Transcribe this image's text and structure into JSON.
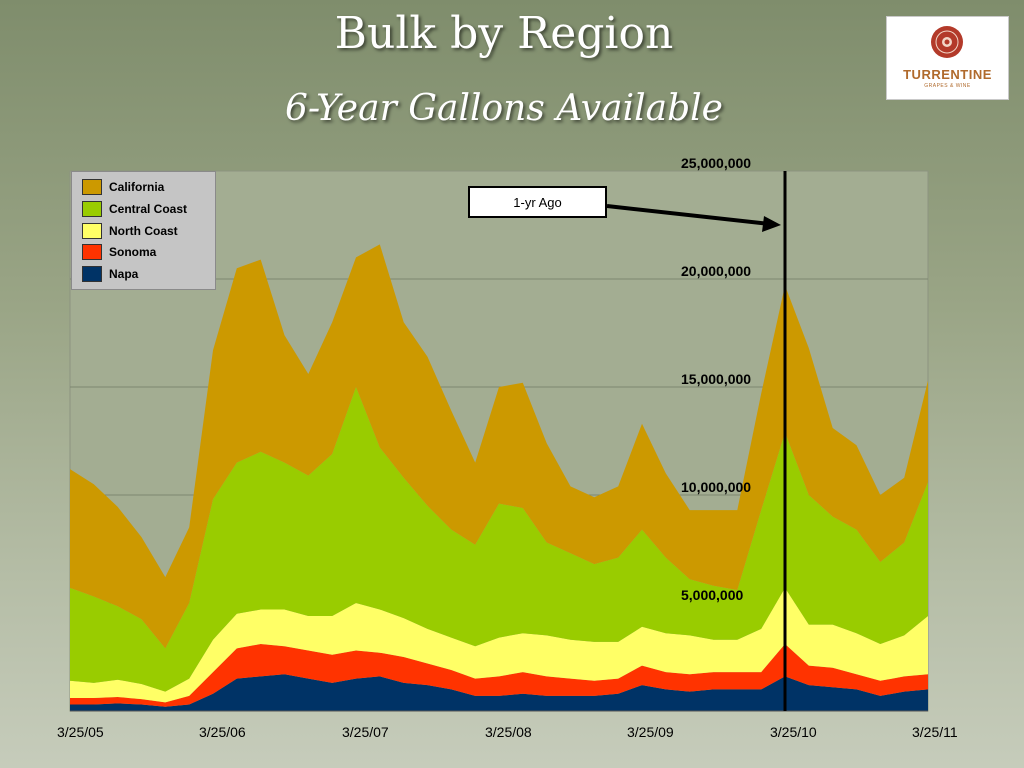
{
  "title": "Bulk by Region",
  "subtitle": "6-Year Gallons Available",
  "logo": {
    "wordmark": "TURRENTINE",
    "tagline": "GRAPES & WINE",
    "seal_text": "TURRENTINE BROKERAGE"
  },
  "annotation": {
    "label": "1-yr Ago",
    "pointer": "arrow to the 3/25/10 marker line, near the top"
  },
  "colors": {
    "California": "#cc9900",
    "Central Coast": "#99cc00",
    "North Coast": "#ffff66",
    "Sonoma": "#ff3300",
    "Napa": "#003366",
    "plot_background": "#a3ad92",
    "marker_line": "#000000"
  },
  "chart_data": {
    "type": "area",
    "stacked": true,
    "title": "Bulk by Region",
    "subtitle": "6-Year Gallons Available",
    "xlabel": "",
    "ylabel": "",
    "x_tick_labels": [
      "3/25/05",
      "3/25/06",
      "3/25/07",
      "3/25/08",
      "3/25/09",
      "3/25/10",
      "3/25/11"
    ],
    "y_tick_labels": [
      "5,000,000",
      "10,000,000",
      "15,000,000",
      "20,000,000",
      "25,000,000"
    ],
    "ylim": [
      0,
      25000000
    ],
    "grid": "horizontal",
    "legend_position": "top-left",
    "marker_line_date": "3/25/10",
    "x": [
      "3/25/05",
      "5/25/05",
      "7/25/05",
      "9/25/05",
      "11/25/05",
      "1/25/06",
      "3/25/06",
      "5/25/06",
      "7/25/06",
      "9/25/06",
      "11/25/06",
      "1/25/07",
      "3/25/07",
      "5/25/07",
      "7/25/07",
      "9/25/07",
      "11/25/07",
      "1/25/08",
      "3/25/08",
      "5/25/08",
      "7/25/08",
      "9/25/08",
      "11/25/08",
      "1/25/09",
      "3/25/09",
      "5/25/09",
      "7/25/09",
      "9/25/09",
      "11/25/09",
      "1/25/10",
      "3/25/10",
      "5/25/10",
      "7/25/10",
      "9/25/10",
      "11/25/10",
      "1/25/11",
      "3/25/11"
    ],
    "series": [
      {
        "name": "Napa",
        "values": [
          300000,
          300000,
          350000,
          300000,
          200000,
          300000,
          800000,
          1500000,
          1600000,
          1700000,
          1500000,
          1300000,
          1500000,
          1600000,
          1300000,
          1200000,
          1000000,
          700000,
          700000,
          800000,
          700000,
          700000,
          700000,
          800000,
          1200000,
          1000000,
          900000,
          1000000,
          1000000,
          1000000,
          1600000,
          1200000,
          1100000,
          1000000,
          700000,
          900000,
          1000000
        ]
      },
      {
        "name": "Sonoma",
        "values": [
          300000,
          300000,
          300000,
          250000,
          200000,
          400000,
          1000000,
          1400000,
          1500000,
          1300000,
          1300000,
          1300000,
          1300000,
          1100000,
          1200000,
          1000000,
          900000,
          800000,
          900000,
          1000000,
          900000,
          800000,
          700000,
          700000,
          900000,
          800000,
          800000,
          800000,
          800000,
          800000,
          1500000,
          900000,
          900000,
          700000,
          700000,
          700000,
          700000
        ]
      },
      {
        "name": "North Coast",
        "values": [
          800000,
          700000,
          800000,
          700000,
          500000,
          800000,
          1500000,
          1600000,
          1600000,
          1700000,
          1600000,
          1800000,
          2200000,
          2000000,
          1800000,
          1600000,
          1500000,
          1500000,
          1800000,
          1800000,
          1900000,
          1800000,
          1800000,
          1700000,
          1800000,
          1800000,
          1800000,
          1500000,
          1500000,
          2000000,
          2600000,
          1900000,
          2000000,
          1900000,
          1700000,
          1900000,
          2700000
        ]
      },
      {
        "name": "Central Coast",
        "values": [
          4300000,
          4000000,
          3400000,
          3000000,
          2000000,
          3500000,
          6500000,
          7000000,
          7300000,
          6800000,
          6500000,
          7500000,
          10000000,
          7500000,
          6500000,
          5700000,
          5000000,
          4700000,
          6200000,
          5800000,
          4300000,
          4000000,
          3600000,
          3900000,
          4500000,
          3500000,
          2600000,
          2500000,
          2300000,
          5500000,
          7200000,
          6000000,
          5000000,
          4800000,
          3800000,
          4300000,
          6200000
        ]
      },
      {
        "name": "California",
        "values": [
          5500000,
          5200000,
          4600000,
          3800000,
          3300000,
          3500000,
          6900000,
          9000000,
          8900000,
          5900000,
          4700000,
          6100000,
          6000000,
          9400000,
          7200000,
          6900000,
          5500000,
          3800000,
          5400000,
          5800000,
          4600000,
          3100000,
          3100000,
          3300000,
          4900000,
          3900000,
          3200000,
          3500000,
          3700000,
          5400000,
          6800000,
          6800000,
          4100000,
          3900000,
          3100000,
          3000000,
          4700000
        ]
      }
    ]
  }
}
